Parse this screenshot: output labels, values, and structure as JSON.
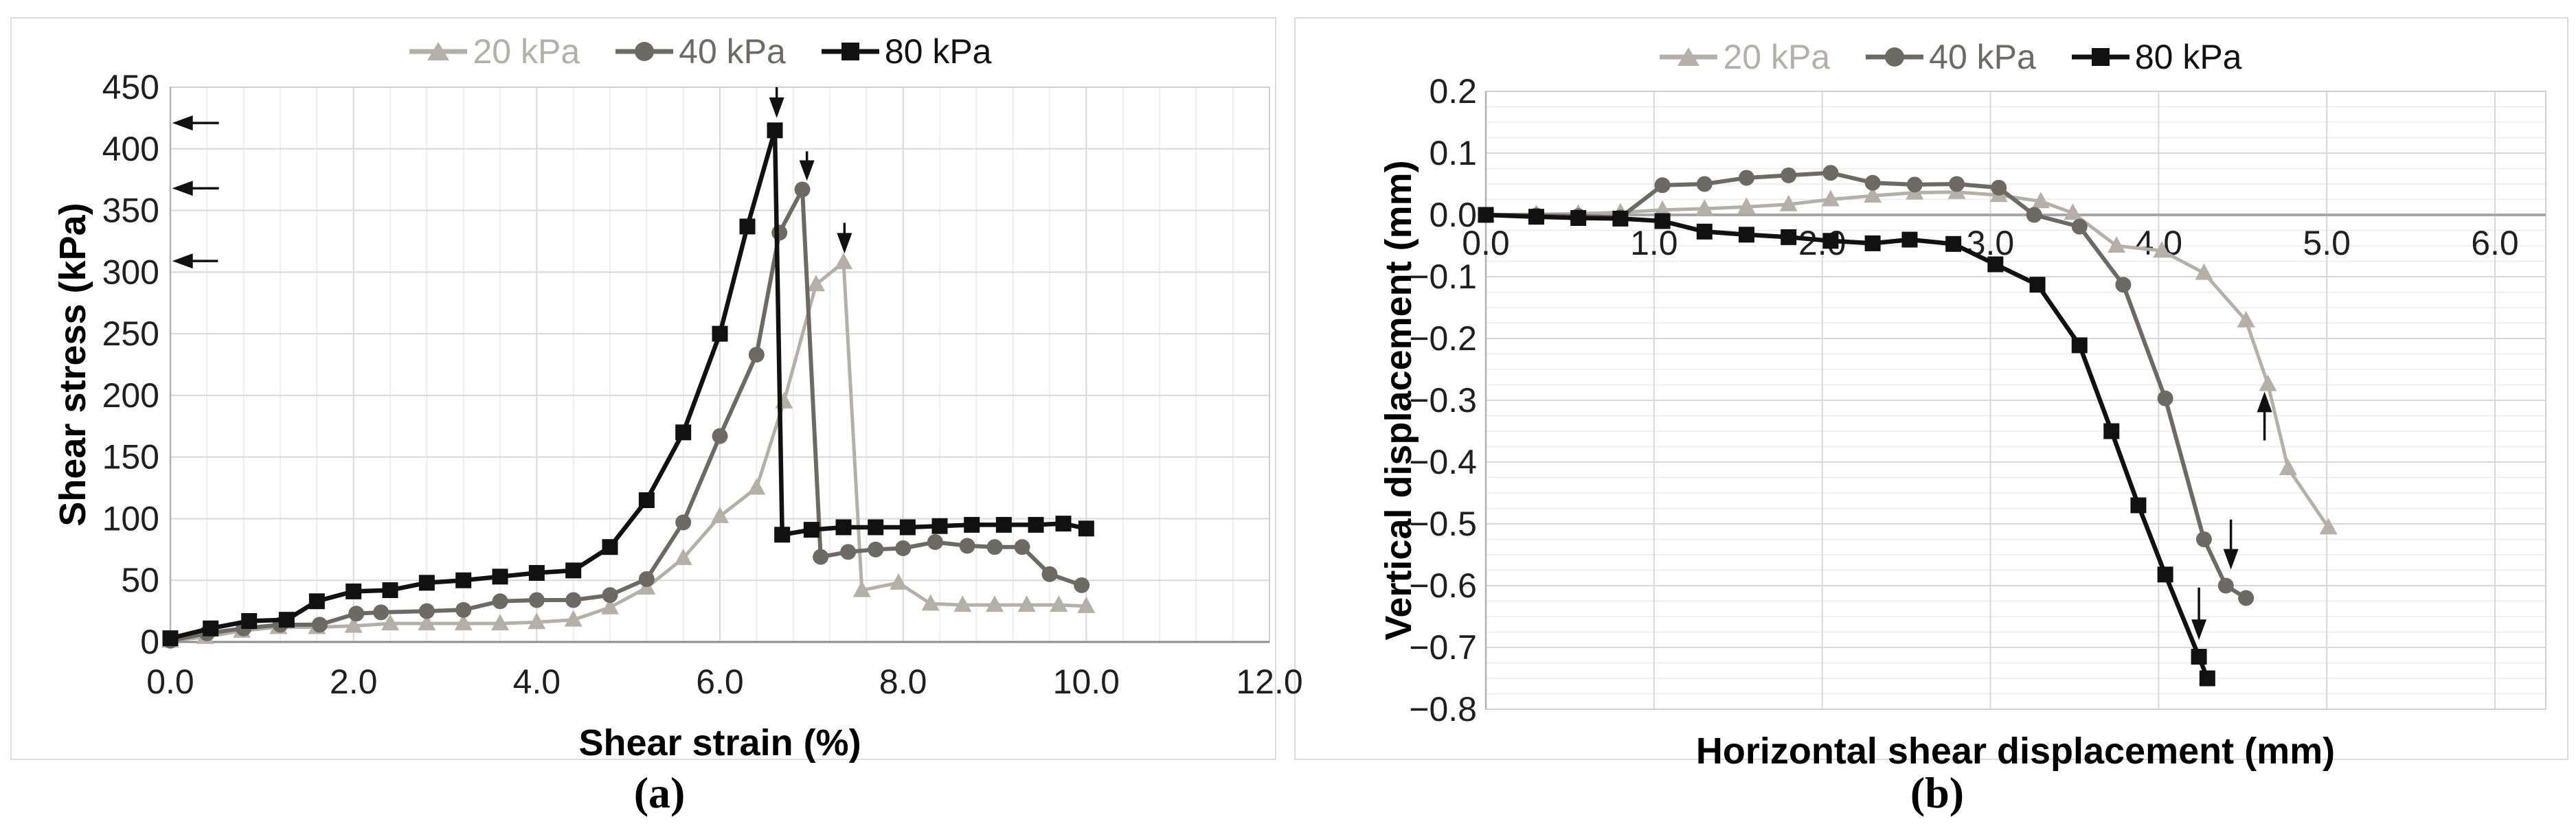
{
  "figure": {
    "captions": [
      "(a)",
      "(b)"
    ]
  },
  "colors": {
    "series_20": "#b4b0a8",
    "series_40": "#6d6a64",
    "series_80": "#111111",
    "grid_minor": "#ebebeb",
    "grid_major": "#d8d8d8",
    "frame": "#d0d0d0",
    "zero_axis_a": "#8c8c8c",
    "zero_axis_b": "#a6a6a6",
    "left_axis": "#b3b3b3",
    "tick_text": "#1f1f1f",
    "arrow": "#111111"
  },
  "chart_data": [
    {
      "id": "a",
      "type": "line",
      "title": "",
      "xlabel": "Shear strain (%)",
      "ylabel": "Shear stress (kPa)",
      "xlim": [
        0,
        12
      ],
      "ylim": [
        0,
        450
      ],
      "x_major_step": 2,
      "x_minor_step": 0.4,
      "y_minor_step": null,
      "grid": true,
      "legend_position": "top",
      "xticks": {
        "values": [
          0,
          2,
          4,
          6,
          8,
          10,
          12
        ],
        "labels": [
          "0.0",
          "2.0",
          "4.0",
          "6.0",
          "8.0",
          "10.0",
          "12.0"
        ]
      },
      "yticks": {
        "values": [
          0,
          50,
          100,
          150,
          200,
          250,
          300,
          350,
          400,
          450
        ],
        "labels": [
          "0",
          "50",
          "100",
          "150",
          "200",
          "250",
          "300",
          "350",
          "400",
          "450"
        ]
      },
      "series": [
        {
          "name": "20 kPa",
          "marker": "triangle",
          "color": "#b4b0a8",
          "points": [
            [
              0,
              1
            ],
            [
              0.38,
              4
            ],
            [
              0.78,
              9
            ],
            [
              1.18,
              12
            ],
            [
              1.6,
              12
            ],
            [
              2.0,
              13
            ],
            [
              2.4,
              15
            ],
            [
              2.8,
              15
            ],
            [
              3.2,
              15
            ],
            [
              3.6,
              15
            ],
            [
              4.0,
              16
            ],
            [
              4.4,
              18
            ],
            [
              4.8,
              28
            ],
            [
              5.2,
              44
            ],
            [
              5.6,
              68
            ],
            [
              6.0,
              102
            ],
            [
              6.4,
              125
            ],
            [
              6.7,
              195
            ],
            [
              7.05,
              290
            ],
            [
              7.35,
              308
            ],
            [
              7.55,
              42
            ],
            [
              7.95,
              48
            ],
            [
              8.3,
              31
            ],
            [
              8.65,
              30
            ],
            [
              9.0,
              30
            ],
            [
              9.35,
              30
            ],
            [
              9.7,
              30
            ],
            [
              10.0,
              29
            ]
          ]
        },
        {
          "name": "40 kPa",
          "marker": "circle",
          "color": "#6d6a64",
          "points": [
            [
              0,
              1
            ],
            [
              0.4,
              7
            ],
            [
              0.8,
              11
            ],
            [
              1.2,
              14
            ],
            [
              1.63,
              14
            ],
            [
              2.03,
              23
            ],
            [
              2.3,
              24
            ],
            [
              2.8,
              25
            ],
            [
              3.2,
              26
            ],
            [
              3.6,
              33
            ],
            [
              4.0,
              34
            ],
            [
              4.4,
              34
            ],
            [
              4.8,
              38
            ],
            [
              5.2,
              51
            ],
            [
              5.6,
              97
            ],
            [
              6.0,
              167
            ],
            [
              6.4,
              233
            ],
            [
              6.65,
              332
            ],
            [
              6.9,
              367
            ],
            [
              7.1,
              69
            ],
            [
              7.4,
              73
            ],
            [
              7.7,
              75
            ],
            [
              8.0,
              76
            ],
            [
              8.35,
              81
            ],
            [
              8.7,
              78
            ],
            [
              9.0,
              77
            ],
            [
              9.3,
              77
            ],
            [
              9.6,
              55
            ],
            [
              9.95,
              46
            ]
          ]
        },
        {
          "name": "80 kPa",
          "marker": "square",
          "color": "#111111",
          "points": [
            [
              0,
              3
            ],
            [
              0.44,
              11
            ],
            [
              0.86,
              17
            ],
            [
              1.27,
              18
            ],
            [
              1.6,
              33
            ],
            [
              2.0,
              41
            ],
            [
              2.4,
              42
            ],
            [
              2.8,
              48
            ],
            [
              3.2,
              50
            ],
            [
              3.6,
              53
            ],
            [
              4.0,
              56
            ],
            [
              4.4,
              58
            ],
            [
              4.8,
              77
            ],
            [
              5.2,
              115
            ],
            [
              5.6,
              170
            ],
            [
              6.0,
              250
            ],
            [
              6.3,
              337
            ],
            [
              6.6,
              415
            ],
            [
              6.68,
              87
            ],
            [
              7.0,
              91
            ],
            [
              7.35,
              93
            ],
            [
              7.7,
              93
            ],
            [
              8.05,
              93
            ],
            [
              8.4,
              94
            ],
            [
              8.75,
              95
            ],
            [
              9.1,
              95
            ],
            [
              9.45,
              95
            ],
            [
              9.75,
              96
            ],
            [
              10.0,
              92
            ]
          ]
        }
      ],
      "annotations": [
        {
          "kind": "arrow",
          "dir": "left",
          "y": 421,
          "x_from": 0.53,
          "x_to": 0.02
        },
        {
          "kind": "arrow",
          "dir": "left",
          "y": 368,
          "x_from": 0.53,
          "x_to": 0.02
        },
        {
          "kind": "arrow",
          "dir": "left",
          "y": 309,
          "x_from": 0.52,
          "x_to": 0.02
        },
        {
          "kind": "arrow",
          "dir": "down",
          "x": 6.62,
          "y_from": 450,
          "y_to": 425
        },
        {
          "kind": "arrow",
          "dir": "down",
          "x": 6.95,
          "y_from": 398,
          "y_to": 374
        },
        {
          "kind": "arrow",
          "dir": "down",
          "x": 7.36,
          "y_from": 340,
          "y_to": 315
        }
      ]
    },
    {
      "id": "b",
      "type": "line",
      "title": "",
      "xlabel": "Horizontal shear displacement (mm)",
      "ylabel": "Vertical displacement (mm)",
      "xlim": [
        0,
        6
      ],
      "ylim": [
        -0.8,
        0.2
      ],
      "x_major_step": 1,
      "x_minor_step": null,
      "y_minor_step": 0.025,
      "grid": true,
      "legend_position": "top",
      "xticks": {
        "values": [
          0,
          1,
          2,
          3,
          4,
          5,
          6
        ],
        "labels": [
          "0.0",
          "1.0",
          "2.0",
          "3.0",
          "4.0",
          "5.0",
          "6.0"
        ]
      },
      "yticks": {
        "values": [
          0.2,
          0.1,
          0.0,
          -0.1,
          -0.2,
          -0.3,
          -0.4,
          -0.5,
          -0.6,
          -0.7,
          -0.8
        ],
        "labels": [
          "0.2",
          "0.1",
          "0.0",
          "−0.1",
          "−0.2",
          "−0.3",
          "−0.4",
          "−0.5",
          "−0.6",
          "−0.7",
          "−0.8"
        ]
      },
      "series": [
        {
          "name": "20 kPa",
          "marker": "triangle",
          "color": "#b4b0a8",
          "points": [
            [
              0,
              0
            ],
            [
              0.3,
              0.001
            ],
            [
              0.55,
              0.002
            ],
            [
              0.8,
              0.004
            ],
            [
              1.05,
              0.008
            ],
            [
              1.3,
              0.01
            ],
            [
              1.55,
              0.013
            ],
            [
              1.8,
              0.017
            ],
            [
              2.05,
              0.025
            ],
            [
              2.3,
              0.031
            ],
            [
              2.55,
              0.036
            ],
            [
              2.8,
              0.037
            ],
            [
              3.05,
              0.032
            ],
            [
              3.3,
              0.022
            ],
            [
              3.49,
              0.003
            ],
            [
              3.75,
              -0.05
            ],
            [
              4.02,
              -0.058
            ],
            [
              4.27,
              -0.094
            ],
            [
              4.52,
              -0.171
            ],
            [
              4.65,
              -0.274
            ],
            [
              4.77,
              -0.41
            ],
            [
              5.01,
              -0.506
            ]
          ]
        },
        {
          "name": "40 kPa",
          "marker": "circle",
          "color": "#6d6a64",
          "points": [
            [
              0,
              0
            ],
            [
              0.3,
              -0.001
            ],
            [
              0.55,
              -0.002
            ],
            [
              0.8,
              -0.004
            ],
            [
              1.05,
              0.048
            ],
            [
              1.3,
              0.05
            ],
            [
              1.55,
              0.06
            ],
            [
              1.8,
              0.064
            ],
            [
              2.05,
              0.068
            ],
            [
              2.3,
              0.052
            ],
            [
              2.55,
              0.049
            ],
            [
              2.8,
              0.05
            ],
            [
              3.05,
              0.044
            ],
            [
              3.26,
              0.0
            ],
            [
              3.53,
              -0.019
            ],
            [
              3.79,
              -0.113
            ],
            [
              4.04,
              -0.297
            ],
            [
              4.27,
              -0.525
            ],
            [
              4.4,
              -0.6
            ],
            [
              4.52,
              -0.62
            ]
          ]
        },
        {
          "name": "80 kPa",
          "marker": "square",
          "color": "#111111",
          "points": [
            [
              0,
              0
            ],
            [
              0.3,
              -0.003
            ],
            [
              0.55,
              -0.005
            ],
            [
              0.8,
              -0.006
            ],
            [
              1.05,
              -0.01
            ],
            [
              1.3,
              -0.027
            ],
            [
              1.55,
              -0.032
            ],
            [
              1.8,
              -0.036
            ],
            [
              2.05,
              -0.042
            ],
            [
              2.3,
              -0.046
            ],
            [
              2.52,
              -0.04
            ],
            [
              2.78,
              -0.047
            ],
            [
              3.03,
              -0.08
            ],
            [
              3.28,
              -0.113
            ],
            [
              3.53,
              -0.211
            ],
            [
              3.72,
              -0.35
            ],
            [
              3.88,
              -0.47
            ],
            [
              4.04,
              -0.582
            ],
            [
              4.24,
              -0.715
            ],
            [
              4.29,
              -0.75
            ]
          ]
        }
      ],
      "annotations": [
        {
          "kind": "arrow",
          "dir": "up",
          "x": 4.63,
          "y_from": -0.365,
          "y_to": -0.286
        },
        {
          "kind": "arrow",
          "dir": "down",
          "x": 4.43,
          "y_from": -0.493,
          "y_to": -0.574
        },
        {
          "kind": "arrow",
          "dir": "down",
          "x": 4.24,
          "y_from": -0.603,
          "y_to": -0.688
        }
      ]
    }
  ]
}
